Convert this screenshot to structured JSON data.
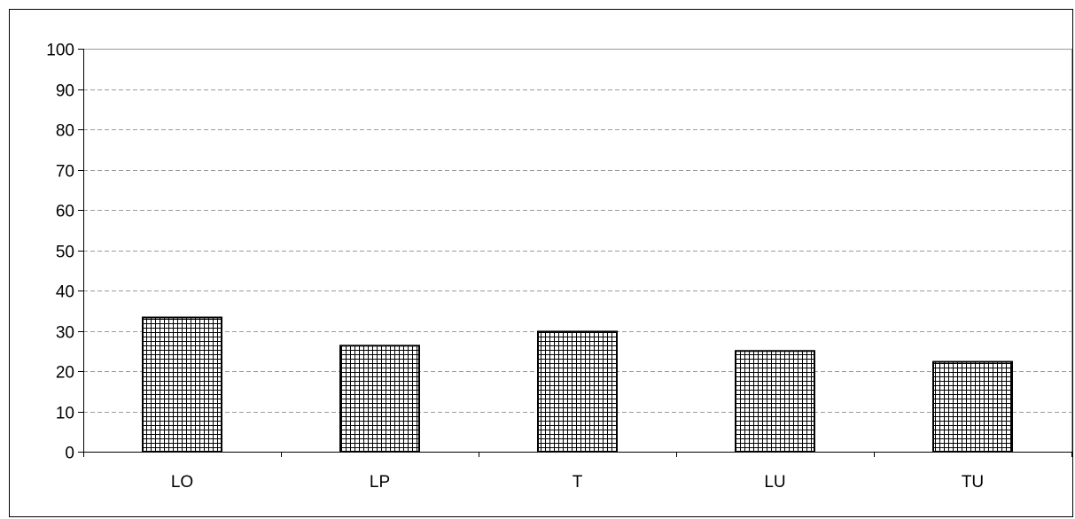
{
  "chart_data": {
    "type": "bar",
    "title": "",
    "xlabel": "",
    "ylabel": "",
    "categories": [
      "LO",
      "LP",
      "T",
      "LU",
      "TU"
    ],
    "values": [
      33.3,
      26.3,
      29.8,
      25.0,
      22.3
    ],
    "ylim": [
      0,
      100
    ],
    "yticks": [
      "0",
      "10",
      "20",
      "30",
      "40",
      "50",
      "60",
      "70",
      "80",
      "90",
      "100"
    ],
    "grid": true,
    "legend": "none",
    "bar_pattern": "crosshatch grid",
    "colors": {
      "bar_fill": "#ffffff",
      "bar_hatch": "#000000",
      "grid": "#9a9a9a",
      "axis": "#000000"
    }
  }
}
